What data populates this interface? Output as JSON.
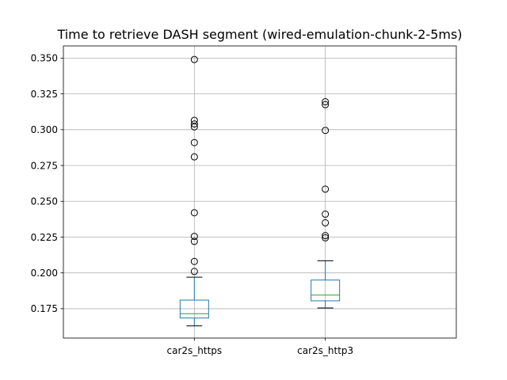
{
  "chart_data": {
    "type": "box",
    "title": "Time to retrieve DASH segment (wired-emulation-chunk-2-5ms)",
    "xlabel": "",
    "ylabel": "",
    "categories": [
      "car2s_https",
      "car2s_http3"
    ],
    "ylim": [
      0.1545,
      0.3585
    ],
    "yticks": [
      0.175,
      0.2,
      0.225,
      0.25,
      0.275,
      0.3,
      0.325,
      0.35
    ],
    "ytick_labels": [
      "0.175",
      "0.200",
      "0.225",
      "0.250",
      "0.275",
      "0.300",
      "0.325",
      "0.350"
    ],
    "grid": true,
    "boxes": [
      {
        "label": "car2s_https",
        "whisker_low": 0.163,
        "q1": 0.1685,
        "median": 0.1715,
        "q3": 0.181,
        "whisker_high": 0.197,
        "outliers": [
          0.201,
          0.208,
          0.222,
          0.2255,
          0.242,
          0.281,
          0.291,
          0.302,
          0.304,
          0.3065,
          0.349
        ]
      },
      {
        "label": "car2s_http3",
        "whisker_low": 0.1755,
        "q1": 0.1805,
        "median": 0.1845,
        "q3": 0.195,
        "whisker_high": 0.2085,
        "outliers": [
          0.2245,
          0.226,
          0.235,
          0.241,
          0.2585,
          0.2995,
          0.3175,
          0.3195
        ]
      }
    ],
    "colors": {
      "box": "#1f77b4",
      "median": "#2ca02c",
      "whisker": "#1f77b4",
      "cap": "#000000",
      "outlier": "#000000",
      "grid": "#b0b0b0",
      "axes": "#000000"
    }
  }
}
